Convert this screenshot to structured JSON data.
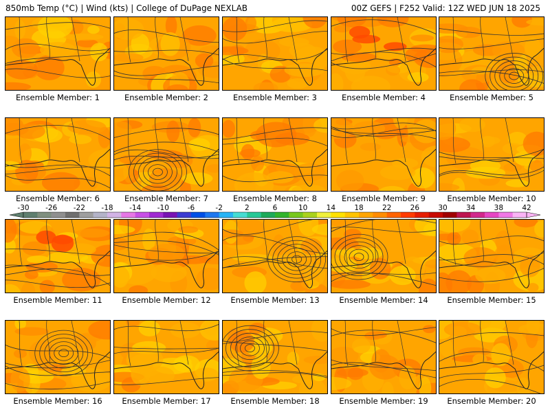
{
  "header": {
    "left": "850mb Temp (°C) | Wind (kts) | College of DuPage NEXLAB",
    "right": "00Z GEFS | F252 Valid: 12Z WED JUN 18 2025"
  },
  "panels": [
    {
      "label": "Ensemble Member: 1",
      "warm": 0.35,
      "low": false
    },
    {
      "label": "Ensemble Member: 2",
      "warm": 0.35,
      "low": false
    },
    {
      "label": "Ensemble Member: 3",
      "warm": 0.25,
      "low": false
    },
    {
      "label": "Ensemble Member: 4",
      "warm": 0.65,
      "low": false
    },
    {
      "label": "Ensemble Member: 5",
      "warm": 0.3,
      "low": true
    },
    {
      "label": "Ensemble Member: 6",
      "warm": 0.3,
      "low": false
    },
    {
      "label": "Ensemble Member: 7",
      "warm": 0.45,
      "low": true
    },
    {
      "label": "Ensemble Member: 8",
      "warm": 0.35,
      "low": false
    },
    {
      "label": "Ensemble Member: 9",
      "warm": 0.4,
      "low": false
    },
    {
      "label": "Ensemble Member: 10",
      "warm": 0.45,
      "low": false
    },
    {
      "label": "Ensemble Member: 11",
      "warm": 0.55,
      "low": false
    },
    {
      "label": "Ensemble Member: 12",
      "warm": 0.4,
      "low": false
    },
    {
      "label": "Ensemble Member: 13",
      "warm": 0.3,
      "low": true
    },
    {
      "label": "Ensemble Member: 14",
      "warm": 0.4,
      "low": true
    },
    {
      "label": "Ensemble Member: 15",
      "warm": 0.4,
      "low": false
    },
    {
      "label": "Ensemble Member: 16",
      "warm": 0.3,
      "low": true
    },
    {
      "label": "Ensemble Member: 17",
      "warm": 0.35,
      "low": false
    },
    {
      "label": "Ensemble Member: 18",
      "warm": 0.35,
      "low": true
    },
    {
      "label": "Ensemble Member: 19",
      "warm": 0.25,
      "low": false
    },
    {
      "label": "Ensemble Member: 20",
      "warm": 0.35,
      "low": false
    }
  ],
  "colorbar": {
    "labels": [
      "-30",
      "-26",
      "-22",
      "-18",
      "-14",
      "-10",
      "-6",
      "-2",
      "2",
      "6",
      "10",
      "14",
      "18",
      "22",
      "26",
      "30",
      "34",
      "38",
      "42"
    ],
    "colors": [
      "#5f7f6f",
      "#7f8f7f",
      "#8f8f8f",
      "#6f6f6f",
      "#9f9f9f",
      "#b4b4c8",
      "#d2b4e6",
      "#e678e6",
      "#c850e6",
      "#a02bd2",
      "#7814b4",
      "#3c3cd2",
      "#0050e6",
      "#1e78f0",
      "#28b4f5",
      "#46dcd2",
      "#28c896",
      "#1eaa5a",
      "#32b42d",
      "#78c81e",
      "#aad21e",
      "#f0f03c",
      "#ffe100",
      "#ffc300",
      "#ffa500",
      "#ff8c00",
      "#ff6400",
      "#ff3c00",
      "#e61e00",
      "#c80a00",
      "#a00000",
      "#be1450",
      "#d2288c",
      "#e646c3",
      "#f078e6",
      "#fab4f5"
    ],
    "min": -30,
    "step": 2
  }
}
